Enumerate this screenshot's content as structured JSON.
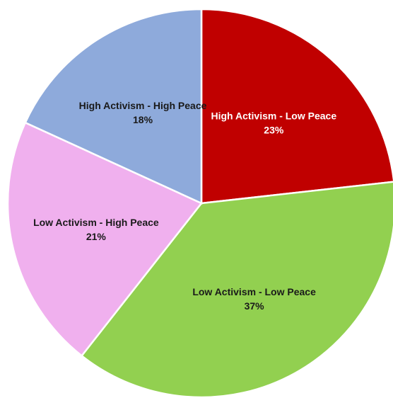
{
  "chart_data": {
    "type": "pie",
    "title": "",
    "legend": "none",
    "labels_inside": true,
    "slices": [
      {
        "label": "High Activism - Low Peace",
        "value": 23,
        "value_label": "23%",
        "color": "#c00000",
        "text_color": "#ffffff"
      },
      {
        "label": "Low Activism - Low Peace",
        "value": 37,
        "value_label": "37%",
        "color": "#92d050",
        "text_color": "#1a1a1a"
      },
      {
        "label": "Low Activism - High Peace",
        "value": 21,
        "value_label": "21%",
        "color": "#f0b0ee",
        "text_color": "#1a1a1a"
      },
      {
        "label": "High Activism - High Peace",
        "value": 18,
        "value_label": "18%",
        "color": "#8eaadb",
        "text_color": "#1a1a1a"
      }
    ]
  }
}
